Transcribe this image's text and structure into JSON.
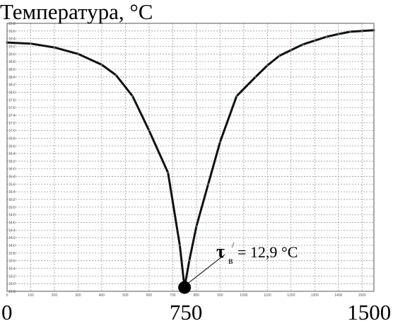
{
  "chart_data": {
    "type": "line",
    "title": "Температура, °С",
    "xlabel": "",
    "ylabel": "",
    "xlim": [
      0,
      1550
    ],
    "ylim": [
      12.8,
      19.8
    ],
    "grid": true,
    "series": [
      {
        "x": [
          0,
          100,
          200,
          300,
          400,
          460,
          530,
          600,
          680,
          730,
          750,
          770,
          800,
          850,
          900,
          970,
          1050,
          1100,
          1150,
          1200,
          1250,
          1300,
          1350,
          1400,
          1450,
          1500,
          1550
        ],
        "y": [
          19.3,
          19.27,
          19.17,
          19.0,
          18.72,
          18.45,
          17.9,
          17.0,
          15.9,
          14.0,
          12.9,
          13.6,
          14.5,
          15.6,
          16.7,
          17.9,
          18.4,
          18.7,
          18.95,
          19.1,
          19.25,
          19.35,
          19.45,
          19.52,
          19.58,
          19.6,
          19.62
        ]
      }
    ],
    "x_tick_labels": [
      "0",
      "100",
      "200",
      "300",
      "400",
      "500",
      "600",
      "700",
      "800",
      "900",
      "1000",
      "1100",
      "1200",
      "1300",
      "1400",
      "1500"
    ],
    "y_tick_labels": [
      "12.8",
      "13.0",
      "13.2",
      "13.4",
      "13.6",
      "13.8",
      "14.0",
      "14.2",
      "14.4",
      "14.6",
      "14.8",
      "15.0",
      "15.2",
      "15.4",
      "15.6",
      "15.8",
      "16.0",
      "16.2",
      "16.4",
      "16.6",
      "16.8",
      "17.0",
      "17.2",
      "17.4",
      "17.6",
      "17.8",
      "18.0",
      "18.2",
      "18.4",
      "18.6",
      "18.8",
      "19.0",
      "19.2",
      "19.4",
      "19.6",
      "19.8"
    ],
    "big_x_labels": [
      {
        "value": 0,
        "text": "0"
      },
      {
        "value": 750,
        "text": "750"
      },
      {
        "value": 1500,
        "text": "1500"
      }
    ],
    "min_point": {
      "x": 750,
      "y": 12.9
    },
    "annotation": {
      "symbol": "τ",
      "subscript": "в",
      "prime": "/",
      "text": "= 12,9 °С"
    }
  }
}
